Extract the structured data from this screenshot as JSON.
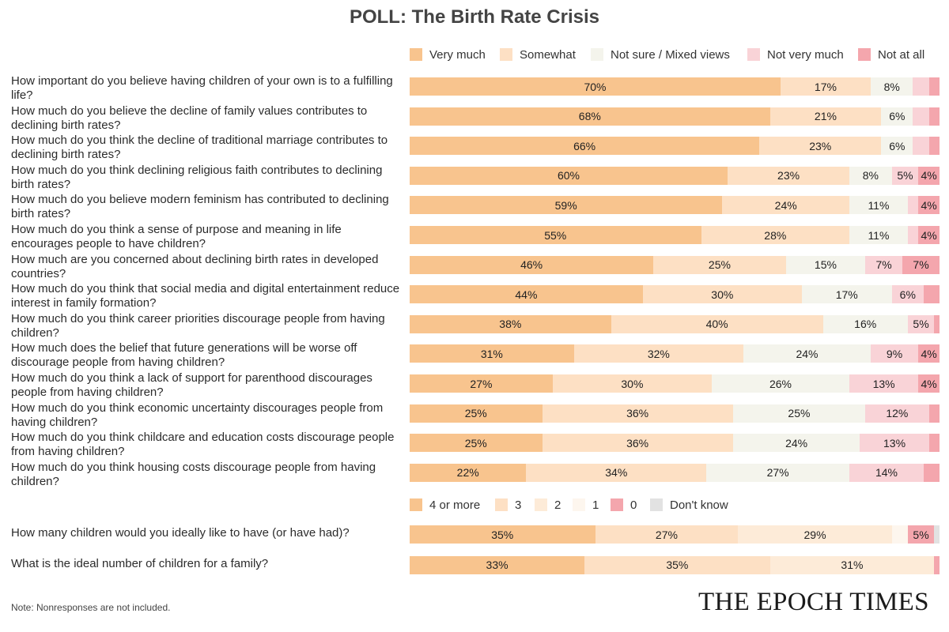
{
  "title": "POLL: The Birth Rate Crisis",
  "note": "Note: Nonresponses are not included.",
  "logo_text": "THE EPOCH TIMES",
  "colors": {
    "very_much": "#f8c48e",
    "somewhat": "#fde0c4",
    "not_sure": "#f4f4ec",
    "not_very_much": "#f9d3d7",
    "not_at_all": "#f4a6ad",
    "four_plus": "#f8c48e",
    "three": "#fde0c4",
    "two": "#fdebd8",
    "one": "#fdf6ee",
    "zero": "#f4a6ad",
    "dont_know": "#e2e2e2"
  },
  "chart_data": [
    {
      "type": "bar",
      "orientation": "horizontal",
      "stacked": true,
      "legend": [
        {
          "name": "Very much",
          "color_key": "very_much"
        },
        {
          "name": "Somewhat",
          "color_key": "somewhat"
        },
        {
          "name": "Not sure / Mixed views",
          "color_key": "not_sure"
        },
        {
          "name": "Not very much",
          "color_key": "not_very_much"
        },
        {
          "name": "Not at all",
          "color_key": "not_at_all"
        }
      ],
      "rows": [
        {
          "question": "How important do you believe having children of your own is to a fulfilling life?",
          "values": [
            70,
            17,
            8,
            3,
            2
          ],
          "labels": [
            "70%",
            "17%",
            "8%",
            "",
            ""
          ]
        },
        {
          "question": "How much do you believe the decline of family values contributes to declining birth rates?",
          "values": [
            68,
            21,
            6,
            3,
            2
          ],
          "labels": [
            "68%",
            "21%",
            "6%",
            "",
            ""
          ]
        },
        {
          "question": "How much do you think the decline of traditional marriage contributes to declining birth rates?",
          "values": [
            66,
            23,
            6,
            3,
            2
          ],
          "labels": [
            "66%",
            "23%",
            "6%",
            "",
            ""
          ]
        },
        {
          "question": "How much do you think declining religious faith contributes to declining birth rates?",
          "values": [
            60,
            23,
            8,
            5,
            4
          ],
          "labels": [
            "60%",
            "23%",
            "8%",
            "5%",
            "4%"
          ]
        },
        {
          "question": "How much do you believe modern feminism has contributed to declining birth rates?",
          "values": [
            59,
            24,
            11,
            2,
            4
          ],
          "labels": [
            "59%",
            "24%",
            "11%",
            "",
            "4%"
          ]
        },
        {
          "question": "How much do you think a sense of purpose and meaning in life encourages people to have children?",
          "values": [
            55,
            28,
            11,
            2,
            4
          ],
          "labels": [
            "55%",
            "28%",
            "11%",
            "",
            "4%"
          ]
        },
        {
          "question": "How much are you concerned about declining birth rates in developed countries?",
          "values": [
            46,
            25,
            15,
            7,
            7
          ],
          "labels": [
            "46%",
            "25%",
            "15%",
            "7%",
            "7%"
          ]
        },
        {
          "question": "How much do you think that social media and digital entertainment reduce interest in family formation?",
          "values": [
            44,
            30,
            17,
            6,
            3
          ],
          "labels": [
            "44%",
            "30%",
            "17%",
            "6%",
            ""
          ]
        },
        {
          "question": "How much do you think career priorities discourage people from having children?",
          "values": [
            38,
            40,
            16,
            5,
            1
          ],
          "labels": [
            "38%",
            "40%",
            "16%",
            "5%",
            ""
          ]
        },
        {
          "question": "How much does the belief that future generations will be worse off discourage people from having children?",
          "values": [
            31,
            32,
            24,
            9,
            4
          ],
          "labels": [
            "31%",
            "32%",
            "24%",
            "9%",
            "4%"
          ]
        },
        {
          "question": "How much do you think a lack of support for parenthood discourages people from having children?",
          "values": [
            27,
            30,
            26,
            13,
            4
          ],
          "labels": [
            "27%",
            "30%",
            "26%",
            "13%",
            "4%"
          ]
        },
        {
          "question": "How much do you think economic uncertainty discourages people from having children?",
          "values": [
            25,
            36,
            25,
            12,
            2
          ],
          "labels": [
            "25%",
            "36%",
            "25%",
            "12%",
            ""
          ]
        },
        {
          "question": "How much do you think childcare and education costs discourage people from having children?",
          "values": [
            25,
            36,
            24,
            13,
            2
          ],
          "labels": [
            "25%",
            "36%",
            "24%",
            "13%",
            ""
          ]
        },
        {
          "question": "How much do you think housing costs discourage people from having children?",
          "values": [
            22,
            34,
            27,
            14,
            3
          ],
          "labels": [
            "22%",
            "34%",
            "27%",
            "14%",
            ""
          ]
        }
      ]
    },
    {
      "type": "bar",
      "orientation": "horizontal",
      "stacked": true,
      "legend": [
        {
          "name": "4 or more",
          "color_key": "four_plus"
        },
        {
          "name": "3",
          "color_key": "three"
        },
        {
          "name": "2",
          "color_key": "two"
        },
        {
          "name": "1",
          "color_key": "one"
        },
        {
          "name": "0",
          "color_key": "zero"
        },
        {
          "name": "Don't know",
          "color_key": "dont_know"
        }
      ],
      "rows": [
        {
          "question": "How many children would you ideally like to have (or have had)?",
          "values": [
            35,
            27,
            29,
            3,
            5,
            1
          ],
          "labels": [
            "35%",
            "27%",
            "29%",
            "",
            "5%",
            ""
          ]
        },
        {
          "question": "What is the ideal number of children for a family?",
          "values": [
            33,
            35,
            31,
            0,
            1,
            0
          ],
          "labels": [
            "33%",
            "35%",
            "31%",
            "",
            "",
            ""
          ]
        }
      ]
    }
  ]
}
